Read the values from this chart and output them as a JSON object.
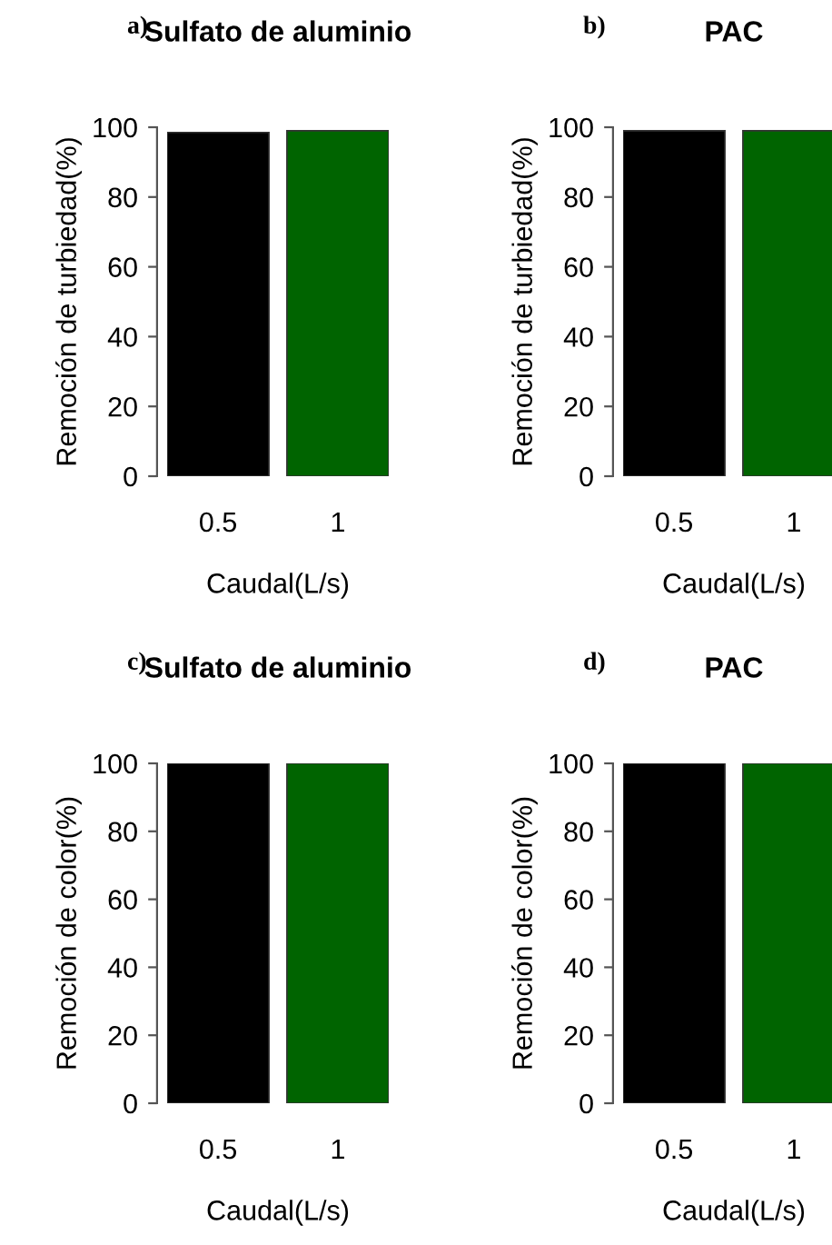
{
  "chart_data": [
    {
      "type": "bar",
      "title": "Sulfato de aluminio",
      "xlabel": "Caudal(L/s)",
      "ylabel": "Remoción de turbiedad(%)",
      "categories": [
        "0.5",
        "1"
      ],
      "values": [
        98.5,
        99
      ],
      "colors": [
        "#000000",
        "#006400"
      ],
      "ylim": [
        0,
        100
      ],
      "yticks": [
        0,
        20,
        40,
        60,
        80,
        100
      ],
      "annotations": [
        "a)"
      ]
    },
    {
      "type": "bar",
      "title": "PAC",
      "xlabel": "Caudal(L/s)",
      "ylabel": "Remoción de turbiedad(%)",
      "categories": [
        "0.5",
        "1"
      ],
      "values": [
        99,
        99
      ],
      "colors": [
        "#000000",
        "#006400"
      ],
      "ylim": [
        0,
        100
      ],
      "yticks": [
        0,
        20,
        40,
        60,
        80,
        100
      ],
      "annotations": [
        "b)"
      ]
    },
    {
      "type": "bar",
      "title": "Sulfato de aluminio",
      "xlabel": "Caudal(L/s)",
      "ylabel": "Remoción de color(%)",
      "categories": [
        "0.5",
        "1"
      ],
      "values": [
        100,
        100
      ],
      "colors": [
        "#000000",
        "#006400"
      ],
      "ylim": [
        0,
        100
      ],
      "yticks": [
        0,
        20,
        40,
        60,
        80,
        100
      ],
      "annotations": [
        "c)"
      ]
    },
    {
      "type": "bar",
      "title": "PAC",
      "xlabel": "Caudal(L/s)",
      "ylabel": "Remoción de color(%)",
      "categories": [
        "0.5",
        "1"
      ],
      "values": [
        100,
        100
      ],
      "colors": [
        "#000000",
        "#006400"
      ],
      "ylim": [
        0,
        100
      ],
      "yticks": [
        0,
        20,
        40,
        60,
        80,
        100
      ],
      "annotations": [
        "d)"
      ]
    }
  ]
}
